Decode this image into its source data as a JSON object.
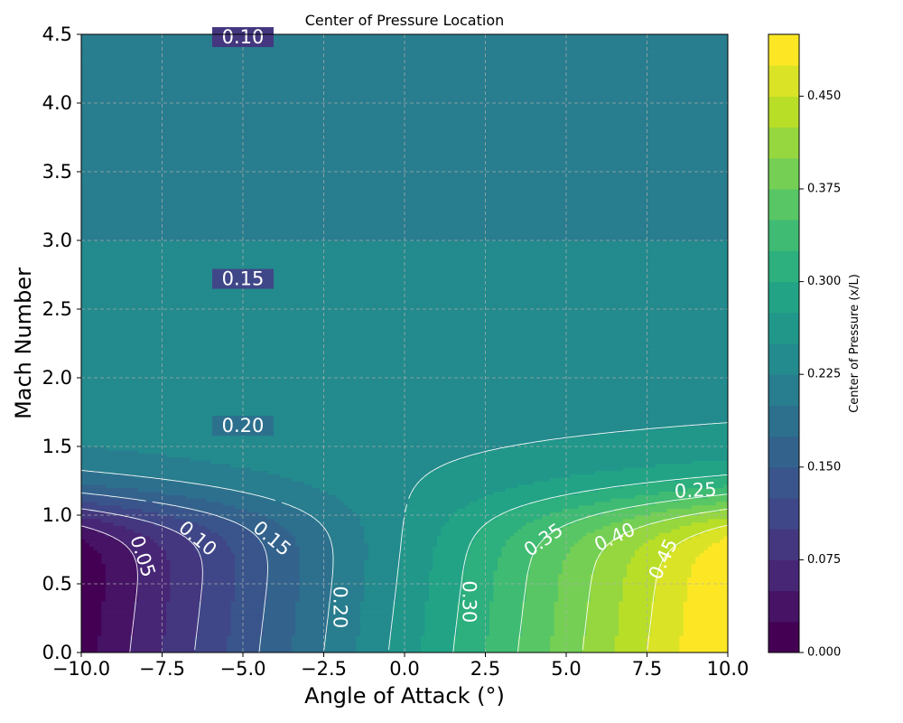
{
  "chart_data": {
    "type": "contour",
    "title": "Center of Pressure Location",
    "xlabel": "Angle of Attack (°)",
    "ylabel": "Mach Number",
    "xlim": [
      -10,
      10
    ],
    "ylim": [
      0,
      4.5
    ],
    "x_ticks": [
      -10,
      -7.5,
      -5,
      -2.5,
      0,
      2.5,
      5,
      7.5,
      10
    ],
    "x_tick_labels": [
      "−10.0",
      "−7.5",
      "−5.0",
      "−2.5",
      "0.0",
      "2.5",
      "5.0",
      "7.5",
      "10.0"
    ],
    "y_ticks": [
      0,
      0.5,
      1,
      1.5,
      2,
      2.5,
      3,
      3.5,
      4,
      4.5
    ],
    "y_tick_labels": [
      "0.0",
      "0.5",
      "1.0",
      "1.5",
      "2.0",
      "2.5",
      "3.0",
      "3.5",
      "4.0",
      "4.5"
    ],
    "grid": true,
    "colormap": "viridis",
    "colorbar": {
      "label": "Center of Pressure (x/L)",
      "levels": [
        0,
        0.025,
        0.05,
        0.075,
        0.1,
        0.125,
        0.15,
        0.175,
        0.2,
        0.225,
        0.25,
        0.275,
        0.3,
        0.325,
        0.35,
        0.375,
        0.4,
        0.425,
        0.45,
        0.475,
        0.5
      ],
      "ticks": [
        0,
        0.075,
        0.15,
        0.225,
        0.3,
        0.375,
        0.45
      ],
      "tick_labels": [
        "0.000",
        "0.075",
        "0.150",
        "0.225",
        "0.300",
        "0.375",
        "0.450"
      ]
    },
    "contour_lines": [
      {
        "level": 0.05,
        "label": "0.05"
      },
      {
        "level": 0.1,
        "label": "0.10"
      },
      {
        "level": 0.15,
        "label": "0.15"
      },
      {
        "level": 0.2,
        "label": "0.20"
      },
      {
        "level": 0.25,
        "label": "0.25"
      },
      {
        "level": 0.3,
        "label": "0.30"
      },
      {
        "level": 0.35,
        "label": "0.35"
      },
      {
        "level": 0.4,
        "label": "0.40"
      },
      {
        "level": 0.45,
        "label": "0.45"
      }
    ]
  }
}
